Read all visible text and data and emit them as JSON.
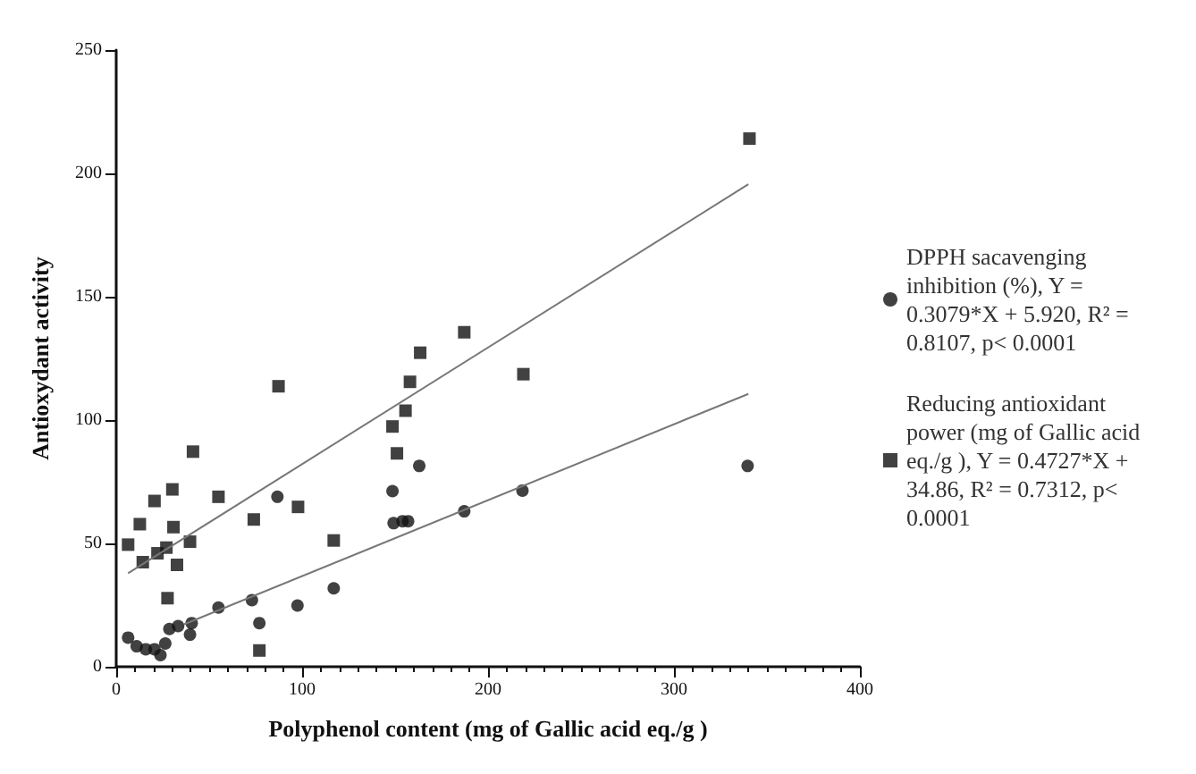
{
  "chart_data": {
    "type": "scatter",
    "xlabel": "Polyphenol content (mg of Gallic acid eq./g )",
    "ylabel": "Antioxydant activity",
    "xlim": [
      0,
      400
    ],
    "xticks": [
      0,
      100,
      200,
      300,
      400
    ],
    "ylim": [
      0,
      250
    ],
    "yticks": [
      0,
      50,
      100,
      150,
      200,
      250
    ],
    "grid": false,
    "legend": "right",
    "series": [
      {
        "name": "DPPH sacavenging inhibition (%), Y = 0.3079*X + 5.920, R² = 0.8107, p< 0.0001",
        "color": "#111111",
        "marker": "circle",
        "x": [
          6.4,
          11,
          15.9,
          20.6,
          23.8,
          26.4,
          28.6,
          33.3,
          39.7,
          40.6,
          55,
          73,
          77,
          86.7,
          97.5,
          117,
          148.6,
          149.2,
          154,
          157,
          163,
          187.2,
          218.5,
          339.6
        ],
        "values": [
          11.8,
          8.3,
          7.1,
          7.1,
          4.7,
          9.4,
          15.3,
          16.5,
          13,
          17.7,
          24,
          27,
          17.7,
          68.9,
          24.8,
          31.8,
          71.2,
          58.2,
          59,
          59,
          81.4,
          63,
          71.4,
          81.4
        ]
      },
      {
        "name": "Reducing antioxidant power (mg of Gallic acid eq./g ), Y = 0.4727*X + 34.86, R² = 0.7312, p< 0.0001",
        "color": "#111111",
        "marker": "square",
        "x": [
          6.4,
          12.7,
          14.3,
          20.6,
          22.2,
          27,
          27.6,
          30.2,
          30.8,
          32.7,
          39.7,
          41.3,
          55,
          74,
          77,
          87.3,
          97.8,
          117,
          148.6,
          151,
          155.6,
          158,
          163.5,
          187.2,
          219,
          340.6
        ],
        "values": [
          49.5,
          57.8,
          42.4,
          67.2,
          46,
          48.3,
          27.8,
          71.9,
          56.6,
          41.3,
          50.7,
          87.2,
          68.9,
          59.7,
          6.6,
          113.7,
          64.8,
          51.2,
          97.4,
          86.5,
          103.8,
          115.5,
          127.3,
          135.6,
          118.6,
          214.1
        ]
      },
      {
        "type": "line",
        "color": "#777777",
        "marker": "none",
        "x": [
          36.5,
          340
        ],
        "values": [
          17.2,
          110.6
        ]
      },
      {
        "type": "line",
        "color": "#777777",
        "marker": "none",
        "x": [
          6.4,
          340
        ],
        "values": [
          37.9,
          195.6
        ]
      }
    ]
  }
}
